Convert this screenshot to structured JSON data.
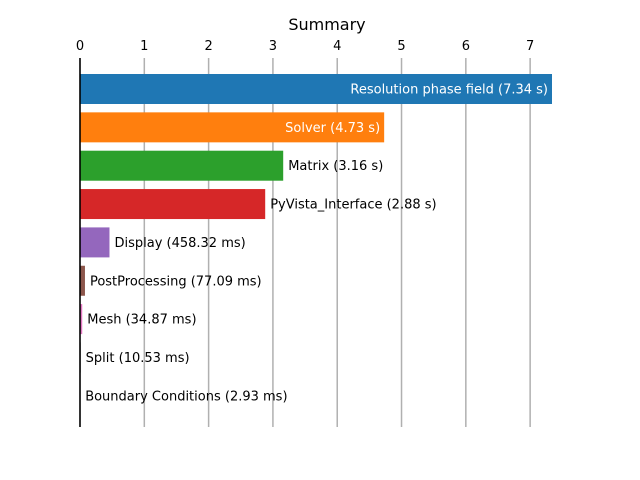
{
  "chart_data": {
    "type": "bar",
    "orientation": "horizontal",
    "title": "Summary",
    "xlabel": "",
    "ylabel": "",
    "xlim": [
      0,
      7.34
    ],
    "x_ticks": [
      0,
      1,
      2,
      3,
      4,
      5,
      6,
      7
    ],
    "x_axis_position": "top",
    "grid": "vertical",
    "categories": [
      "Resolution phase field",
      "Solver",
      "Matrix",
      "PyVista_Interface",
      "Display",
      "PostProcessing",
      "Mesh",
      "Split",
      "Boundary Conditions"
    ],
    "values": [
      7.34,
      4.73,
      3.16,
      2.88,
      0.45832,
      0.07709,
      0.03487,
      0.01053,
      0.00293
    ],
    "labels": [
      "Resolution phase field (7.34 s)",
      "Solver (4.73 s)",
      "Matrix (3.16 s)",
      "PyVista_Interface (2.88 s)",
      "Display (458.32 ms)",
      "PostProcessing (77.09 ms)",
      "Mesh (34.87 ms)",
      "Split (10.53 ms)",
      "Boundary Conditions (2.93 ms)"
    ],
    "colors": [
      "#1f77b4",
      "#ff7f0e",
      "#2ca02c",
      "#d62728",
      "#9467bd",
      "#8c564b",
      "#e377c2",
      "#7f7f7f",
      "#bcbd22"
    ],
    "label_inside": [
      true,
      true,
      false,
      false,
      false,
      false,
      false,
      false,
      false
    ]
  }
}
